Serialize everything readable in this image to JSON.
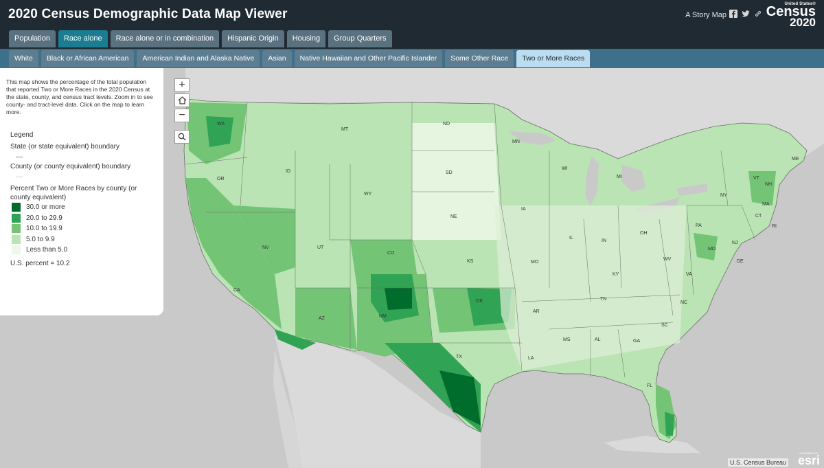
{
  "header": {
    "title": "2020 Census Demographic Data Map Viewer",
    "story_map": "A Story Map",
    "logo": {
      "small": "United States®",
      "name": "Census",
      "year": "2020"
    }
  },
  "tabs_primary": [
    {
      "label": "Population"
    },
    {
      "label": "Race alone"
    },
    {
      "label": "Race alone or in combination"
    },
    {
      "label": "Hispanic Origin"
    },
    {
      "label": "Housing"
    },
    {
      "label": "Group Quarters"
    }
  ],
  "tabs_secondary": [
    {
      "label": "White"
    },
    {
      "label": "Black or African American"
    },
    {
      "label": "American Indian and Alaska Native"
    },
    {
      "label": "Asian"
    },
    {
      "label": "Native Hawaiian and Other Pacific Islander"
    },
    {
      "label": "Some Other Race"
    },
    {
      "label": "Two or More Races"
    }
  ],
  "panel": {
    "description": "This map shows the percentage of the total population that reported Two or More Races in the 2020 Census at the state, county, and census tract levels. Zoom in to see county- and tract-level data. Click on the map to learn more.",
    "legend_title": "Legend",
    "state_boundary": "State (or state equivalent) boundary",
    "county_boundary": "County (or county equivalent) boundary",
    "percent_title": "Percent Two or More Races by county (or county equivalent)",
    "classes": [
      {
        "label": "30.0 or more",
        "color": "#006d2c"
      },
      {
        "label": "20.0 to 29.9",
        "color": "#31a354"
      },
      {
        "label": "10.0 to 19.9",
        "color": "#74c476"
      },
      {
        "label": "5.0 to 9.9",
        "color": "#bae4b3"
      },
      {
        "label": "Less than 5.0",
        "color": "#edf8e9"
      }
    ],
    "us_percent": "U.S. percent = 10.2"
  },
  "controls": {
    "zoom_in": "+",
    "zoom_out": "−"
  },
  "map": {
    "credit": "U.S. Census Bureau",
    "esri_powered": "POWERED BY",
    "esri_name": "esri",
    "state_labels": [
      {
        "abbr": "WA"
      },
      {
        "abbr": "OR"
      },
      {
        "abbr": "CA"
      },
      {
        "abbr": "NV"
      },
      {
        "abbr": "ID"
      },
      {
        "abbr": "MT"
      },
      {
        "abbr": "WY"
      },
      {
        "abbr": "UT"
      },
      {
        "abbr": "AZ"
      },
      {
        "abbr": "CO"
      },
      {
        "abbr": "NM"
      },
      {
        "abbr": "ND"
      },
      {
        "abbr": "SD"
      },
      {
        "abbr": "NE"
      },
      {
        "abbr": "KS"
      },
      {
        "abbr": "OK"
      },
      {
        "abbr": "TX"
      },
      {
        "abbr": "MN"
      },
      {
        "abbr": "IA"
      },
      {
        "abbr": "MO"
      },
      {
        "abbr": "AR"
      },
      {
        "abbr": "LA"
      },
      {
        "abbr": "WI"
      },
      {
        "abbr": "IL"
      },
      {
        "abbr": "MI"
      },
      {
        "abbr": "IN"
      },
      {
        "abbr": "OH"
      },
      {
        "abbr": "KY"
      },
      {
        "abbr": "TN"
      },
      {
        "abbr": "MS"
      },
      {
        "abbr": "AL"
      },
      {
        "abbr": "GA"
      },
      {
        "abbr": "FL"
      },
      {
        "abbr": "SC"
      },
      {
        "abbr": "NC"
      },
      {
        "abbr": "VA"
      },
      {
        "abbr": "WV"
      },
      {
        "abbr": "PA"
      },
      {
        "abbr": "NY"
      },
      {
        "abbr": "VT"
      },
      {
        "abbr": "NH"
      },
      {
        "abbr": "ME"
      },
      {
        "abbr": "MA"
      },
      {
        "abbr": "CT"
      },
      {
        "abbr": "RI"
      },
      {
        "abbr": "NJ"
      },
      {
        "abbr": "DE"
      },
      {
        "abbr": "MD"
      }
    ]
  }
}
